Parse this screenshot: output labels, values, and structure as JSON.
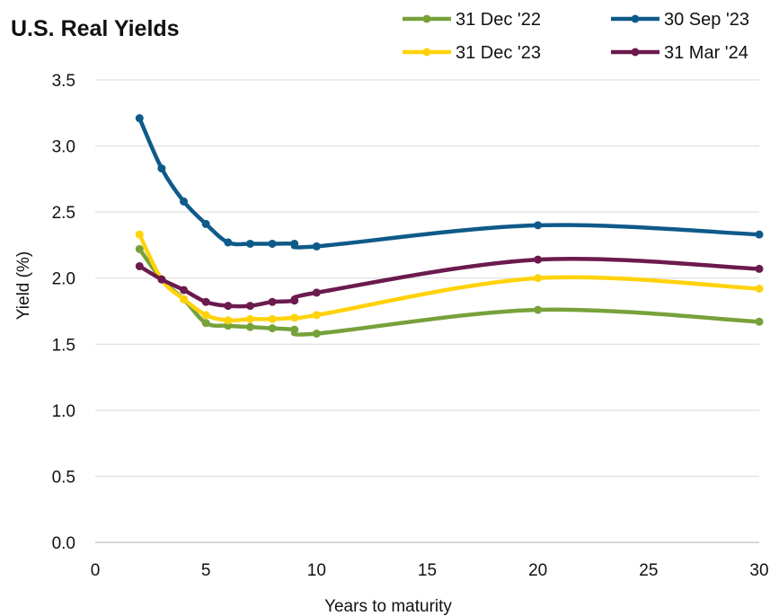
{
  "chart_data": {
    "type": "line",
    "title": "U.S. Real Yields",
    "xlabel": "Years to maturity",
    "ylabel": "Yield (%)",
    "xlim": [
      0,
      30
    ],
    "ylim": [
      0,
      3.5
    ],
    "xticks": [
      "0",
      "5",
      "10",
      "15",
      "20",
      "25",
      "30"
    ],
    "yticks": [
      "0.0",
      "0.5",
      "1.0",
      "1.5",
      "2.0",
      "2.5",
      "3.0",
      "3.5"
    ],
    "grid": true,
    "legend_position": "top-right",
    "series": [
      {
        "name": "31 Dec '22",
        "color": "#77a13a",
        "x": [
          2,
          3,
          4,
          5,
          6,
          7,
          8,
          9,
          10,
          20,
          30
        ],
        "y": [
          2.22,
          1.99,
          1.84,
          1.66,
          1.64,
          1.63,
          1.62,
          1.61,
          1.58,
          1.76,
          1.67
        ]
      },
      {
        "name": "30 Sep '23",
        "color": "#0e5a89",
        "x": [
          2,
          3,
          4,
          5,
          6,
          7,
          8,
          9,
          10,
          20,
          30
        ],
        "y": [
          3.21,
          2.83,
          2.58,
          2.41,
          2.27,
          2.26,
          2.26,
          2.26,
          2.24,
          2.4,
          2.33
        ]
      },
      {
        "name": "31 Dec '23",
        "color": "#ffd20a",
        "x": [
          2,
          3,
          4,
          5,
          6,
          7,
          8,
          9,
          10,
          20,
          30
        ],
        "y": [
          2.33,
          1.99,
          1.84,
          1.72,
          1.68,
          1.69,
          1.69,
          1.7,
          1.72,
          2.0,
          1.92
        ]
      },
      {
        "name": "31 Mar '24",
        "color": "#6b1a4e",
        "x": [
          2,
          3,
          4,
          5,
          6,
          7,
          8,
          9,
          10,
          20,
          30
        ],
        "y": [
          2.09,
          1.99,
          1.91,
          1.82,
          1.79,
          1.79,
          1.82,
          1.83,
          1.89,
          2.14,
          2.07
        ]
      }
    ]
  }
}
